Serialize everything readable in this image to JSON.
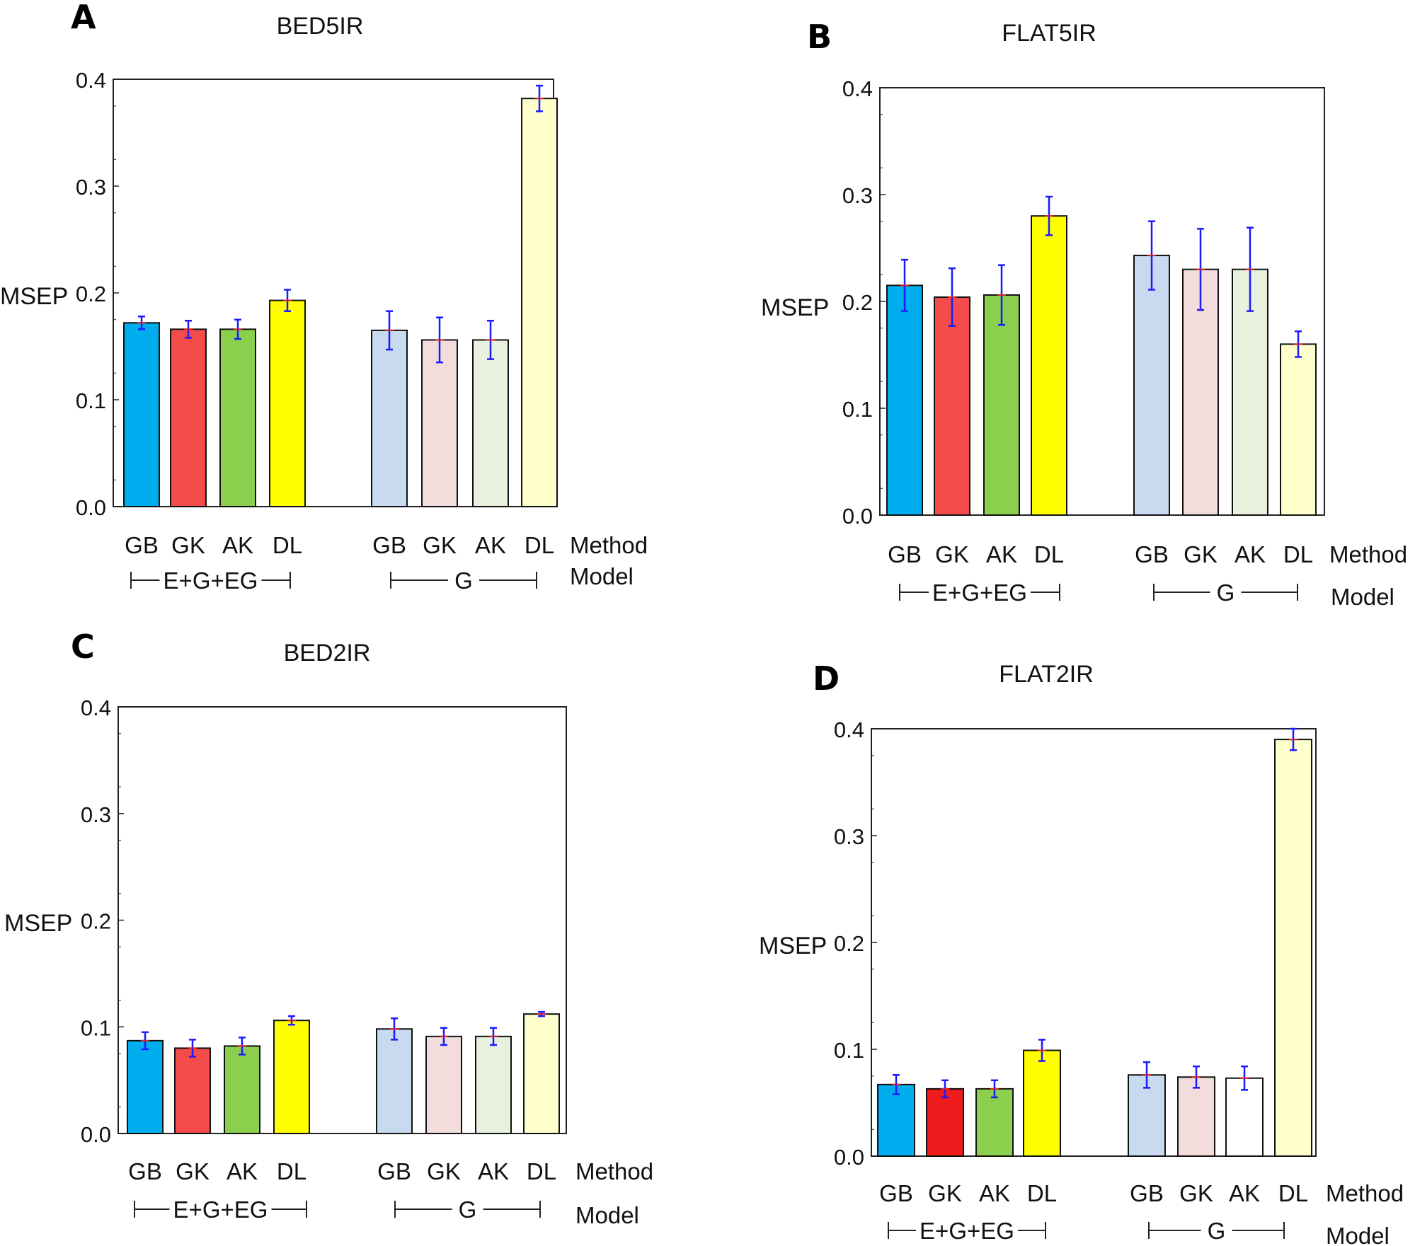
{
  "colors": {
    "GB_strong": "#00aeef",
    "GK_strong": "#f44b4b",
    "GK_strong_D": "#ee1c1c",
    "AK_strong": "#8ccf4d",
    "DL_strong": "#ffff00",
    "GB_pale": "#c8daf0",
    "GK_pale": "#f2dcdc",
    "AK_pale": "#e8f0de",
    "AK_pale_D": "#ffffff",
    "DL_pale": "#ffffcc",
    "error": "#1a1aff",
    "mean": "#e0201f"
  },
  "chart_data": [
    {
      "panel": "A",
      "type": "bar",
      "title": "BED5IR",
      "ylabel": "MSEP",
      "ylim": [
        0,
        0.4
      ],
      "yticks": [
        "0.0",
        "0.1",
        "0.2",
        "0.3",
        "0.4"
      ],
      "method_label": "Method",
      "model_label": "Model",
      "groups": [
        {
          "model": "E+G+EG",
          "categories": [
            "GB",
            "GK",
            "AK",
            "DL"
          ],
          "values": [
            0.172,
            0.166,
            0.166,
            0.193
          ],
          "errors": [
            0.006,
            0.008,
            0.009,
            0.01
          ],
          "colors": [
            "#00aeef",
            "#f44b4b",
            "#8ccf4d",
            "#ffff00"
          ]
        },
        {
          "model": "G",
          "categories": [
            "GB",
            "GK",
            "AK",
            "DL"
          ],
          "values": [
            0.165,
            0.156,
            0.156,
            0.382
          ],
          "errors": [
            0.018,
            0.021,
            0.018,
            0.012
          ],
          "colors": [
            "#c8daf0",
            "#f2dcdc",
            "#e8f0de",
            "#ffffcc"
          ]
        }
      ]
    },
    {
      "panel": "B",
      "type": "bar",
      "title": "FLAT5IR",
      "ylabel": "MSEP",
      "ylim": [
        0,
        0.4
      ],
      "yticks": [
        "0.0",
        "0.1",
        "0.2",
        "0.3",
        "0.4"
      ],
      "method_label": "Method",
      "model_label": "Model",
      "groups": [
        {
          "model": "E+G+EG",
          "categories": [
            "GB",
            "GK",
            "AK",
            "DL"
          ],
          "values": [
            0.215,
            0.204,
            0.206,
            0.28
          ],
          "errors": [
            0.024,
            0.027,
            0.028,
            0.018
          ],
          "colors": [
            "#00aeef",
            "#f44b4b",
            "#8ccf4d",
            "#ffff00"
          ]
        },
        {
          "model": "G",
          "categories": [
            "GB",
            "GK",
            "AK",
            "DL"
          ],
          "values": [
            0.243,
            0.23,
            0.23,
            0.16
          ],
          "errors": [
            0.032,
            0.038,
            0.039,
            0.012
          ],
          "colors": [
            "#c8daf0",
            "#f2dcdc",
            "#e8f0de",
            "#ffffcc"
          ]
        }
      ]
    },
    {
      "panel": "C",
      "type": "bar",
      "title": "BED2IR",
      "ylabel": "MSEP",
      "ylim": [
        0,
        0.4
      ],
      "yticks": [
        "0.0",
        "0.1",
        "0.2",
        "0.3",
        "0.4"
      ],
      "method_label": "Method",
      "model_label": "Model",
      "groups": [
        {
          "model": "E+G+EG",
          "categories": [
            "GB",
            "GK",
            "AK",
            "DL"
          ],
          "values": [
            0.087,
            0.08,
            0.082,
            0.106
          ],
          "errors": [
            0.008,
            0.008,
            0.008,
            0.004
          ],
          "colors": [
            "#00aeef",
            "#f44b4b",
            "#8ccf4d",
            "#ffff00"
          ]
        },
        {
          "model": "G",
          "categories": [
            "GB",
            "GK",
            "AK",
            "DL"
          ],
          "values": [
            0.098,
            0.091,
            0.091,
            0.112
          ],
          "errors": [
            0.01,
            0.008,
            0.008,
            0.002
          ],
          "colors": [
            "#c8daf0",
            "#f2dcdc",
            "#e8f0de",
            "#ffffcc"
          ]
        }
      ]
    },
    {
      "panel": "D",
      "type": "bar",
      "title": "FLAT2IR",
      "ylabel": "MSEP",
      "ylim": [
        0,
        0.4
      ],
      "yticks": [
        "0.0",
        "0.1",
        "0.2",
        "0.3",
        "0.4"
      ],
      "method_label": "Method",
      "model_label": "Model",
      "groups": [
        {
          "model": "E+G+EG",
          "categories": [
            "GB",
            "GK",
            "AK",
            "DL"
          ],
          "values": [
            0.067,
            0.063,
            0.063,
            0.099
          ],
          "errors": [
            0.009,
            0.008,
            0.008,
            0.01
          ],
          "colors": [
            "#00aeef",
            "#ee1c1c",
            "#8ccf4d",
            "#ffff00"
          ]
        },
        {
          "model": "G",
          "categories": [
            "GB",
            "GK",
            "AK",
            "DL"
          ],
          "values": [
            0.076,
            0.074,
            0.073,
            0.39
          ],
          "errors": [
            0.012,
            0.01,
            0.011,
            0.01
          ],
          "colors": [
            "#c8daf0",
            "#f2dcdc",
            "#ffffff",
            "#ffffcc"
          ]
        }
      ]
    }
  ]
}
